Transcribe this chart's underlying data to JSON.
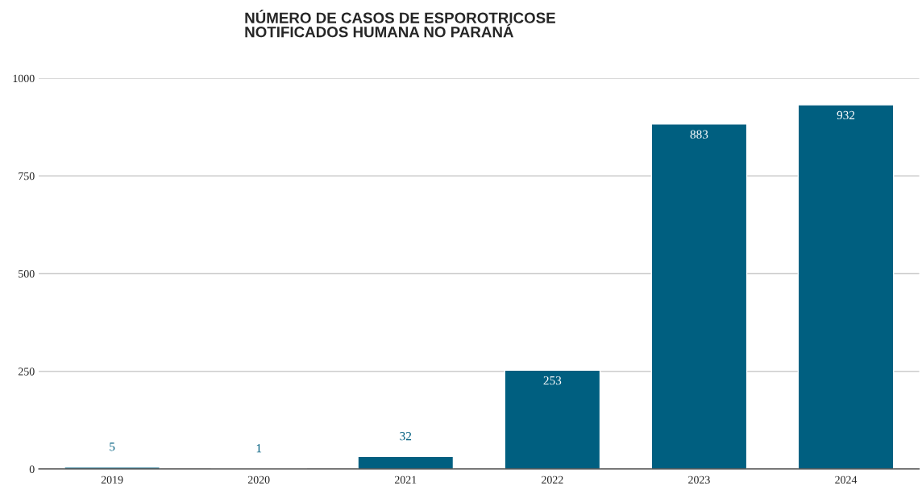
{
  "chart_data": {
    "type": "bar",
    "title": "NÚMERO DE CASOS DE ESPOROTRICOSE\nNOTIFICADOS HUMANA NO PARANÁ",
    "categories": [
      "2019",
      "2020",
      "2021",
      "2022",
      "2023",
      "2024"
    ],
    "values": [
      5,
      1,
      32,
      253,
      883,
      932
    ],
    "color": "#005f80",
    "ylim": [
      0,
      1000
    ],
    "yticks": [
      0,
      250,
      500,
      750,
      1000
    ],
    "grid": "y",
    "data_labels": true,
    "legend": false
  }
}
